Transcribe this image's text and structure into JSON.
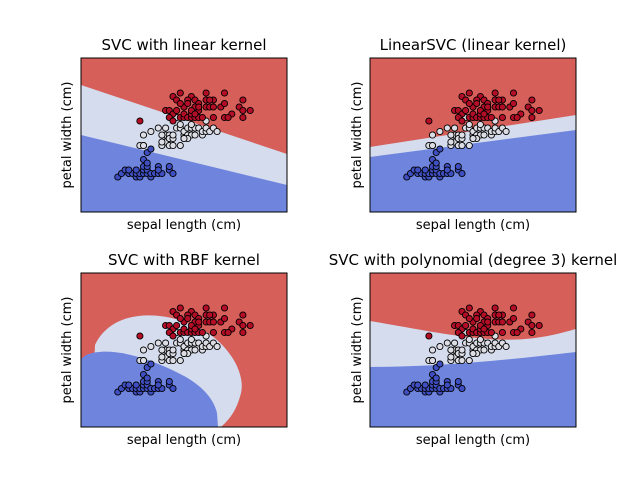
{
  "figure": {
    "colors": {
      "red_region": "#d65f5a",
      "white_region": "#d4dcee",
      "blue_region": "#6f84dd",
      "class0_point": "#3f4fc1",
      "class1_point": "#dcdde5",
      "class2_point": "#b40e26",
      "edge": "#000000"
    }
  },
  "chart_data": [
    {
      "type": "scatter",
      "title": "SVC with linear kernel",
      "xlabel": "sepal length (cm)",
      "ylabel": "petal width (cm)",
      "region_type": "linear",
      "xlim": [
        3.3,
        8.9
      ],
      "ylim": [
        -0.9,
        3.5
      ],
      "grid": false,
      "xticks": [],
      "yticks": []
    },
    {
      "type": "scatter",
      "title": "LinearSVC (linear kernel)",
      "xlabel": "sepal length (cm)",
      "ylabel": "petal width (cm)",
      "region_type": "linearsvc",
      "xlim": [
        3.3,
        8.9
      ],
      "ylim": [
        -0.9,
        3.5
      ],
      "grid": false,
      "xticks": [],
      "yticks": []
    },
    {
      "type": "scatter",
      "title": "SVC with RBF kernel",
      "xlabel": "sepal length (cm)",
      "ylabel": "petal width (cm)",
      "region_type": "rbf",
      "xlim": [
        3.3,
        8.9
      ],
      "ylim": [
        -0.9,
        3.5
      ],
      "grid": false,
      "xticks": [],
      "yticks": []
    },
    {
      "type": "scatter",
      "title": "SVC with polynomial (degree 3) kernel",
      "xlabel": "sepal length (cm)",
      "ylabel": "petal width (cm)",
      "region_type": "poly",
      "xlim": [
        3.3,
        8.9
      ],
      "ylim": [
        -0.9,
        3.5
      ],
      "grid": false,
      "xticks": [],
      "yticks": []
    }
  ],
  "points": {
    "class0": [
      [
        4.3,
        0.1
      ],
      [
        4.4,
        0.2
      ],
      [
        4.5,
        0.3
      ],
      [
        4.6,
        0.2
      ],
      [
        4.7,
        0.2
      ],
      [
        4.8,
        0.1
      ],
      [
        4.8,
        0.2
      ],
      [
        4.9,
        0.1
      ],
      [
        4.9,
        0.2
      ],
      [
        5.0,
        0.2
      ],
      [
        5.0,
        0.3
      ],
      [
        5.0,
        0.4
      ],
      [
        5.0,
        0.6
      ],
      [
        5.1,
        0.2
      ],
      [
        5.1,
        0.3
      ],
      [
        5.1,
        0.4
      ],
      [
        5.1,
        0.5
      ],
      [
        5.2,
        0.1
      ],
      [
        5.2,
        0.2
      ],
      [
        5.3,
        0.2
      ],
      [
        5.4,
        0.2
      ],
      [
        5.4,
        0.4
      ],
      [
        5.5,
        0.2
      ],
      [
        5.7,
        0.3
      ],
      [
        5.7,
        0.4
      ],
      [
        5.8,
        0.2
      ],
      [
        4.6,
        0.3
      ],
      [
        5.4,
        0.3
      ],
      [
        4.8,
        0.3
      ],
      [
        5.1,
        0.8
      ],
      [
        5.0,
        1.0
      ],
      [
        5.2,
        0.9
      ]
    ],
    "class1": [
      [
        4.9,
        1.0
      ],
      [
        5.0,
        1.0
      ],
      [
        5.2,
        1.4
      ],
      [
        5.5,
        1.0
      ],
      [
        5.6,
        1.1
      ],
      [
        5.7,
        1.0
      ],
      [
        5.8,
        1.0
      ],
      [
        6.0,
        1.0
      ],
      [
        5.5,
        1.1
      ],
      [
        5.6,
        1.3
      ],
      [
        5.7,
        1.3
      ],
      [
        5.5,
        1.3
      ],
      [
        5.6,
        1.5
      ],
      [
        5.7,
        1.2
      ],
      [
        5.8,
        1.2
      ],
      [
        5.9,
        1.5
      ],
      [
        6.0,
        1.5
      ],
      [
        6.1,
        1.3
      ],
      [
        6.1,
        1.4
      ],
      [
        6.2,
        1.3
      ],
      [
        6.2,
        1.5
      ],
      [
        6.3,
        1.3
      ],
      [
        6.3,
        1.5
      ],
      [
        6.4,
        1.3
      ],
      [
        6.4,
        1.5
      ],
      [
        6.5,
        1.5
      ],
      [
        6.6,
        1.3
      ],
      [
        6.6,
        1.4
      ],
      [
        6.7,
        1.4
      ],
      [
        6.7,
        1.5
      ],
      [
        6.8,
        1.4
      ],
      [
        6.9,
        1.5
      ],
      [
        7.0,
        1.4
      ],
      [
        6.0,
        1.6
      ],
      [
        6.3,
        1.6
      ],
      [
        5.9,
        1.8
      ],
      [
        6.7,
        1.7
      ],
      [
        6.1,
        1.2
      ],
      [
        5.4,
        1.5
      ],
      [
        5.0,
        1.3
      ],
      [
        6.2,
        1.2
      ],
      [
        5.8,
        1.3
      ],
      [
        6.1,
        1.2
      ]
    ],
    "class2": [
      [
        4.9,
        1.7
      ],
      [
        5.6,
        2.0
      ],
      [
        5.7,
        2.0
      ],
      [
        5.8,
        1.9
      ],
      [
        5.8,
        2.4
      ],
      [
        6.0,
        1.8
      ],
      [
        6.1,
        1.8
      ],
      [
        6.1,
        1.9
      ],
      [
        6.2,
        1.8
      ],
      [
        6.3,
        1.8
      ],
      [
        6.3,
        1.9
      ],
      [
        6.3,
        2.4
      ],
      [
        6.4,
        1.8
      ],
      [
        6.4,
        2.3
      ],
      [
        6.5,
        2.0
      ],
      [
        6.5,
        2.2
      ],
      [
        6.7,
        2.1
      ],
      [
        6.7,
        2.3
      ],
      [
        6.7,
        2.5
      ],
      [
        6.8,
        2.1
      ],
      [
        6.9,
        2.1
      ],
      [
        6.9,
        2.3
      ],
      [
        7.1,
        2.1
      ],
      [
        7.2,
        1.8
      ],
      [
        7.2,
        2.5
      ],
      [
        7.4,
        1.9
      ],
      [
        7.6,
        2.1
      ],
      [
        7.7,
        2.0
      ],
      [
        7.7,
        2.3
      ],
      [
        7.9,
        2.0
      ],
      [
        6.2,
        2.3
      ],
      [
        6.0,
        2.5
      ],
      [
        6.8,
        2.3
      ],
      [
        5.9,
        2.3
      ],
      [
        6.4,
        2.1
      ],
      [
        6.3,
        2.0
      ],
      [
        7.7,
        1.8
      ],
      [
        6.5,
        1.8
      ],
      [
        5.7,
        1.8
      ],
      [
        6.4,
        1.9
      ],
      [
        6.6,
        1.8
      ],
      [
        6.1,
        2.1
      ],
      [
        5.9,
        2.0
      ],
      [
        6.2,
        2.2
      ],
      [
        6.9,
        1.8
      ],
      [
        6.0,
        2.2
      ],
      [
        6.5,
        2.1
      ],
      [
        7.3,
        1.8
      ],
      [
        7.2,
        2.2
      ],
      [
        5.8,
        1.7
      ]
    ]
  }
}
